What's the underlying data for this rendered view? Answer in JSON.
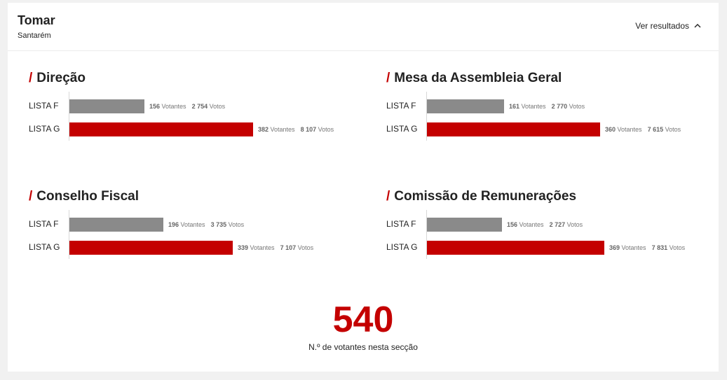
{
  "header": {
    "city": "Tomar",
    "district": "Santarém",
    "toggle_label": "Ver resultados",
    "toggle_icon": "chevron-up-icon"
  },
  "colors": {
    "accent": "#c40000",
    "list_f": "#8a8a8a",
    "list_g": "#c40000"
  },
  "chart_data": [
    {
      "type": "bar",
      "title": "Direção",
      "categories": [
        "LISTA F",
        "LISTA G"
      ],
      "votantes": [
        156,
        382
      ],
      "votos": [
        2754,
        8107
      ],
      "votantes_text": [
        "156",
        "382"
      ],
      "votos_text": [
        "2 754",
        "8 107"
      ],
      "unit_votantes": "Votantes",
      "unit_votos": "Votos"
    },
    {
      "type": "bar",
      "title": "Mesa da Assembleia Geral",
      "categories": [
        "LISTA F",
        "LISTA G"
      ],
      "votantes": [
        161,
        360
      ],
      "votos": [
        2770,
        7615
      ],
      "votantes_text": [
        "161",
        "360"
      ],
      "votos_text": [
        "2 770",
        "7 615"
      ],
      "unit_votantes": "Votantes",
      "unit_votos": "Votos"
    },
    {
      "type": "bar",
      "title": "Conselho Fiscal",
      "categories": [
        "LISTA F",
        "LISTA G"
      ],
      "votantes": [
        196,
        339
      ],
      "votos": [
        3735,
        7107
      ],
      "votantes_text": [
        "196",
        "339"
      ],
      "votos_text": [
        "3 735",
        "7 107"
      ],
      "unit_votantes": "Votantes",
      "unit_votos": "Votos"
    },
    {
      "type": "bar",
      "title": "Comissão de Remunerações",
      "categories": [
        "LISTA F",
        "LISTA G"
      ],
      "votantes": [
        156,
        369
      ],
      "votos": [
        2727,
        7831
      ],
      "votantes_text": [
        "156",
        "369"
      ],
      "votos_text": [
        "2 727",
        "7 831"
      ],
      "unit_votantes": "Votantes",
      "unit_votos": "Votos"
    }
  ],
  "total": {
    "value": "540",
    "caption": "N.º de votantes nesta secção"
  }
}
